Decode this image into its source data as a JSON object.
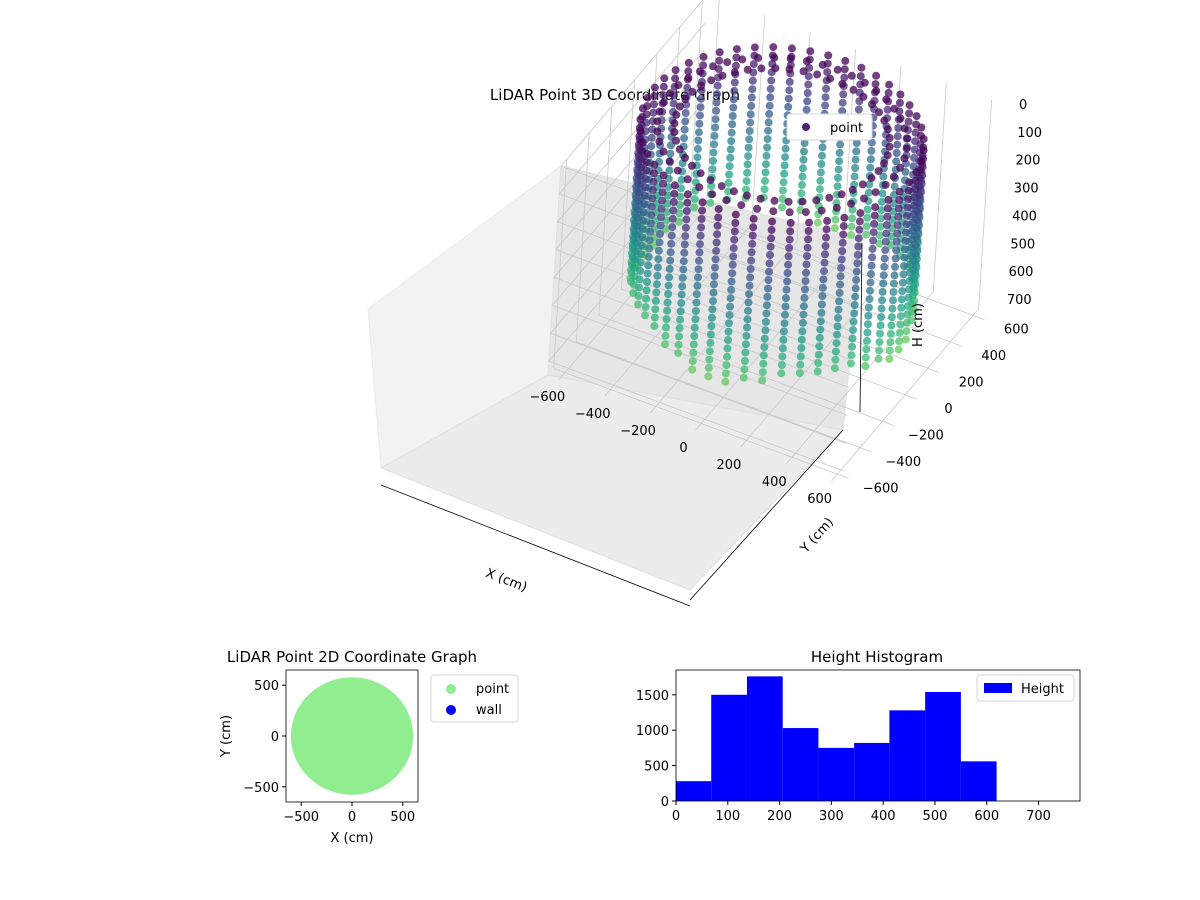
{
  "chart_data": [
    {
      "type": "scatter",
      "projection": "3d",
      "title": "LiDAR Point 3D Coordinate Graph",
      "xlabel": "X (cm)",
      "ylabel": "Y (cm)",
      "zlabel": "H (cm)",
      "xlim": [
        -650,
        650
      ],
      "ylim": [
        -650,
        650
      ],
      "zlim": [
        750,
        0
      ],
      "z_inverted": true,
      "xticks": [
        -600,
        -400,
        -200,
        0,
        200,
        400,
        600
      ],
      "yticks": [
        -600,
        -400,
        -200,
        0,
        200,
        400,
        600
      ],
      "zticks": [
        0,
        100,
        200,
        300,
        400,
        500,
        600,
        700
      ],
      "colormap": "viridis",
      "legend": [
        {
          "label": "point",
          "color": "#482475"
        }
      ],
      "legend_position": "top-right",
      "grid": true,
      "shape": {
        "description": "roughly circular room wall sampled in vertical columns",
        "radius_cm": 560,
        "height_range_cm": [
          0,
          620
        ],
        "columns": 48
      }
    },
    {
      "type": "scatter",
      "title": "LiDAR Point 2D Coordinate Graph",
      "xlabel": "X (cm)",
      "ylabel": "Y (cm)",
      "xlim": [
        -650,
        650
      ],
      "ylim": [
        -650,
        650
      ],
      "xticks": [
        -500,
        0,
        500
      ],
      "yticks": [
        -500,
        0,
        500
      ],
      "series": [
        {
          "name": "point",
          "color": "#90ee90",
          "center": [
            0,
            0
          ],
          "radius": 590
        },
        {
          "name": "wall",
          "color": "#0000ff",
          "points": []
        }
      ],
      "legend_position": "outside-right"
    },
    {
      "type": "bar",
      "subtype": "histogram",
      "title": "Height Histogram",
      "xlim": [
        0,
        780
      ],
      "ylim": [
        0,
        1850
      ],
      "xticks": [
        0,
        100,
        200,
        300,
        400,
        500,
        600,
        700
      ],
      "yticks": [
        0,
        500,
        1000,
        1500
      ],
      "bin_edges": [
        0,
        68,
        137,
        206,
        275,
        344,
        412,
        481,
        550,
        619
      ],
      "values": [
        280,
        1500,
        1760,
        1030,
        750,
        820,
        1280,
        1540,
        560
      ],
      "series": [
        {
          "name": "Height",
          "color": "#0000ff"
        }
      ],
      "legend_position": "top-right"
    }
  ]
}
